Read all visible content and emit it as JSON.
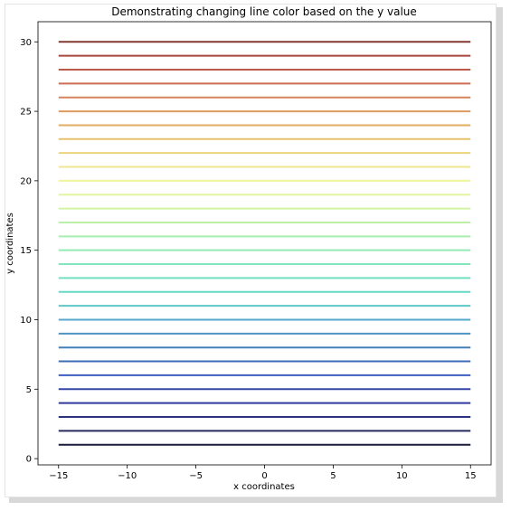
{
  "chart_data": {
    "type": "line",
    "title": "Demonstrating changing line color based on the y value",
    "xlabel": "x coordinates",
    "ylabel": "y coordinates",
    "xlim": [
      -16.5,
      16.5
    ],
    "ylim": [
      -0.45,
      31.45
    ],
    "x_ticks": [
      -15,
      -10,
      -5,
      0,
      5,
      10,
      15
    ],
    "x_tick_labels": [
      "−15",
      "−10",
      "−5",
      "0",
      "5",
      "10",
      "15"
    ],
    "y_ticks": [
      0,
      5,
      10,
      15,
      20,
      25,
      30
    ],
    "y_tick_labels": [
      "0",
      "5",
      "10",
      "15",
      "20",
      "25",
      "30"
    ],
    "x_range": [
      -15,
      15
    ],
    "y_values": [
      1,
      2,
      3,
      4,
      5,
      6,
      7,
      8,
      9,
      10,
      11,
      12,
      13,
      14,
      15,
      16,
      17,
      18,
      19,
      20,
      21,
      22,
      23,
      24,
      25,
      26,
      27,
      28,
      29,
      30
    ],
    "colormap": "terrain",
    "line_colors": [
      "#1a1a3a",
      "#262a5c",
      "#2b3280",
      "#2f3a9c",
      "#3546a8",
      "#3b5ec0",
      "#3e6db8",
      "#4480b8",
      "#4c94c4",
      "#55a8cc",
      "#5ec8c8",
      "#66d8c4",
      "#70e0c0",
      "#80e6bc",
      "#92eab4",
      "#a8eeac",
      "#bdf0a6",
      "#d0f4a2",
      "#e2f6a0",
      "#f0f49a",
      "#f0e690",
      "#ecd47c",
      "#e6c26c",
      "#e2ae62",
      "#de9a5c",
      "#d6845a",
      "#cc6e52",
      "#bc5848",
      "#a8483c",
      "#843832"
    ],
    "grid": false,
    "legend": "none"
  }
}
